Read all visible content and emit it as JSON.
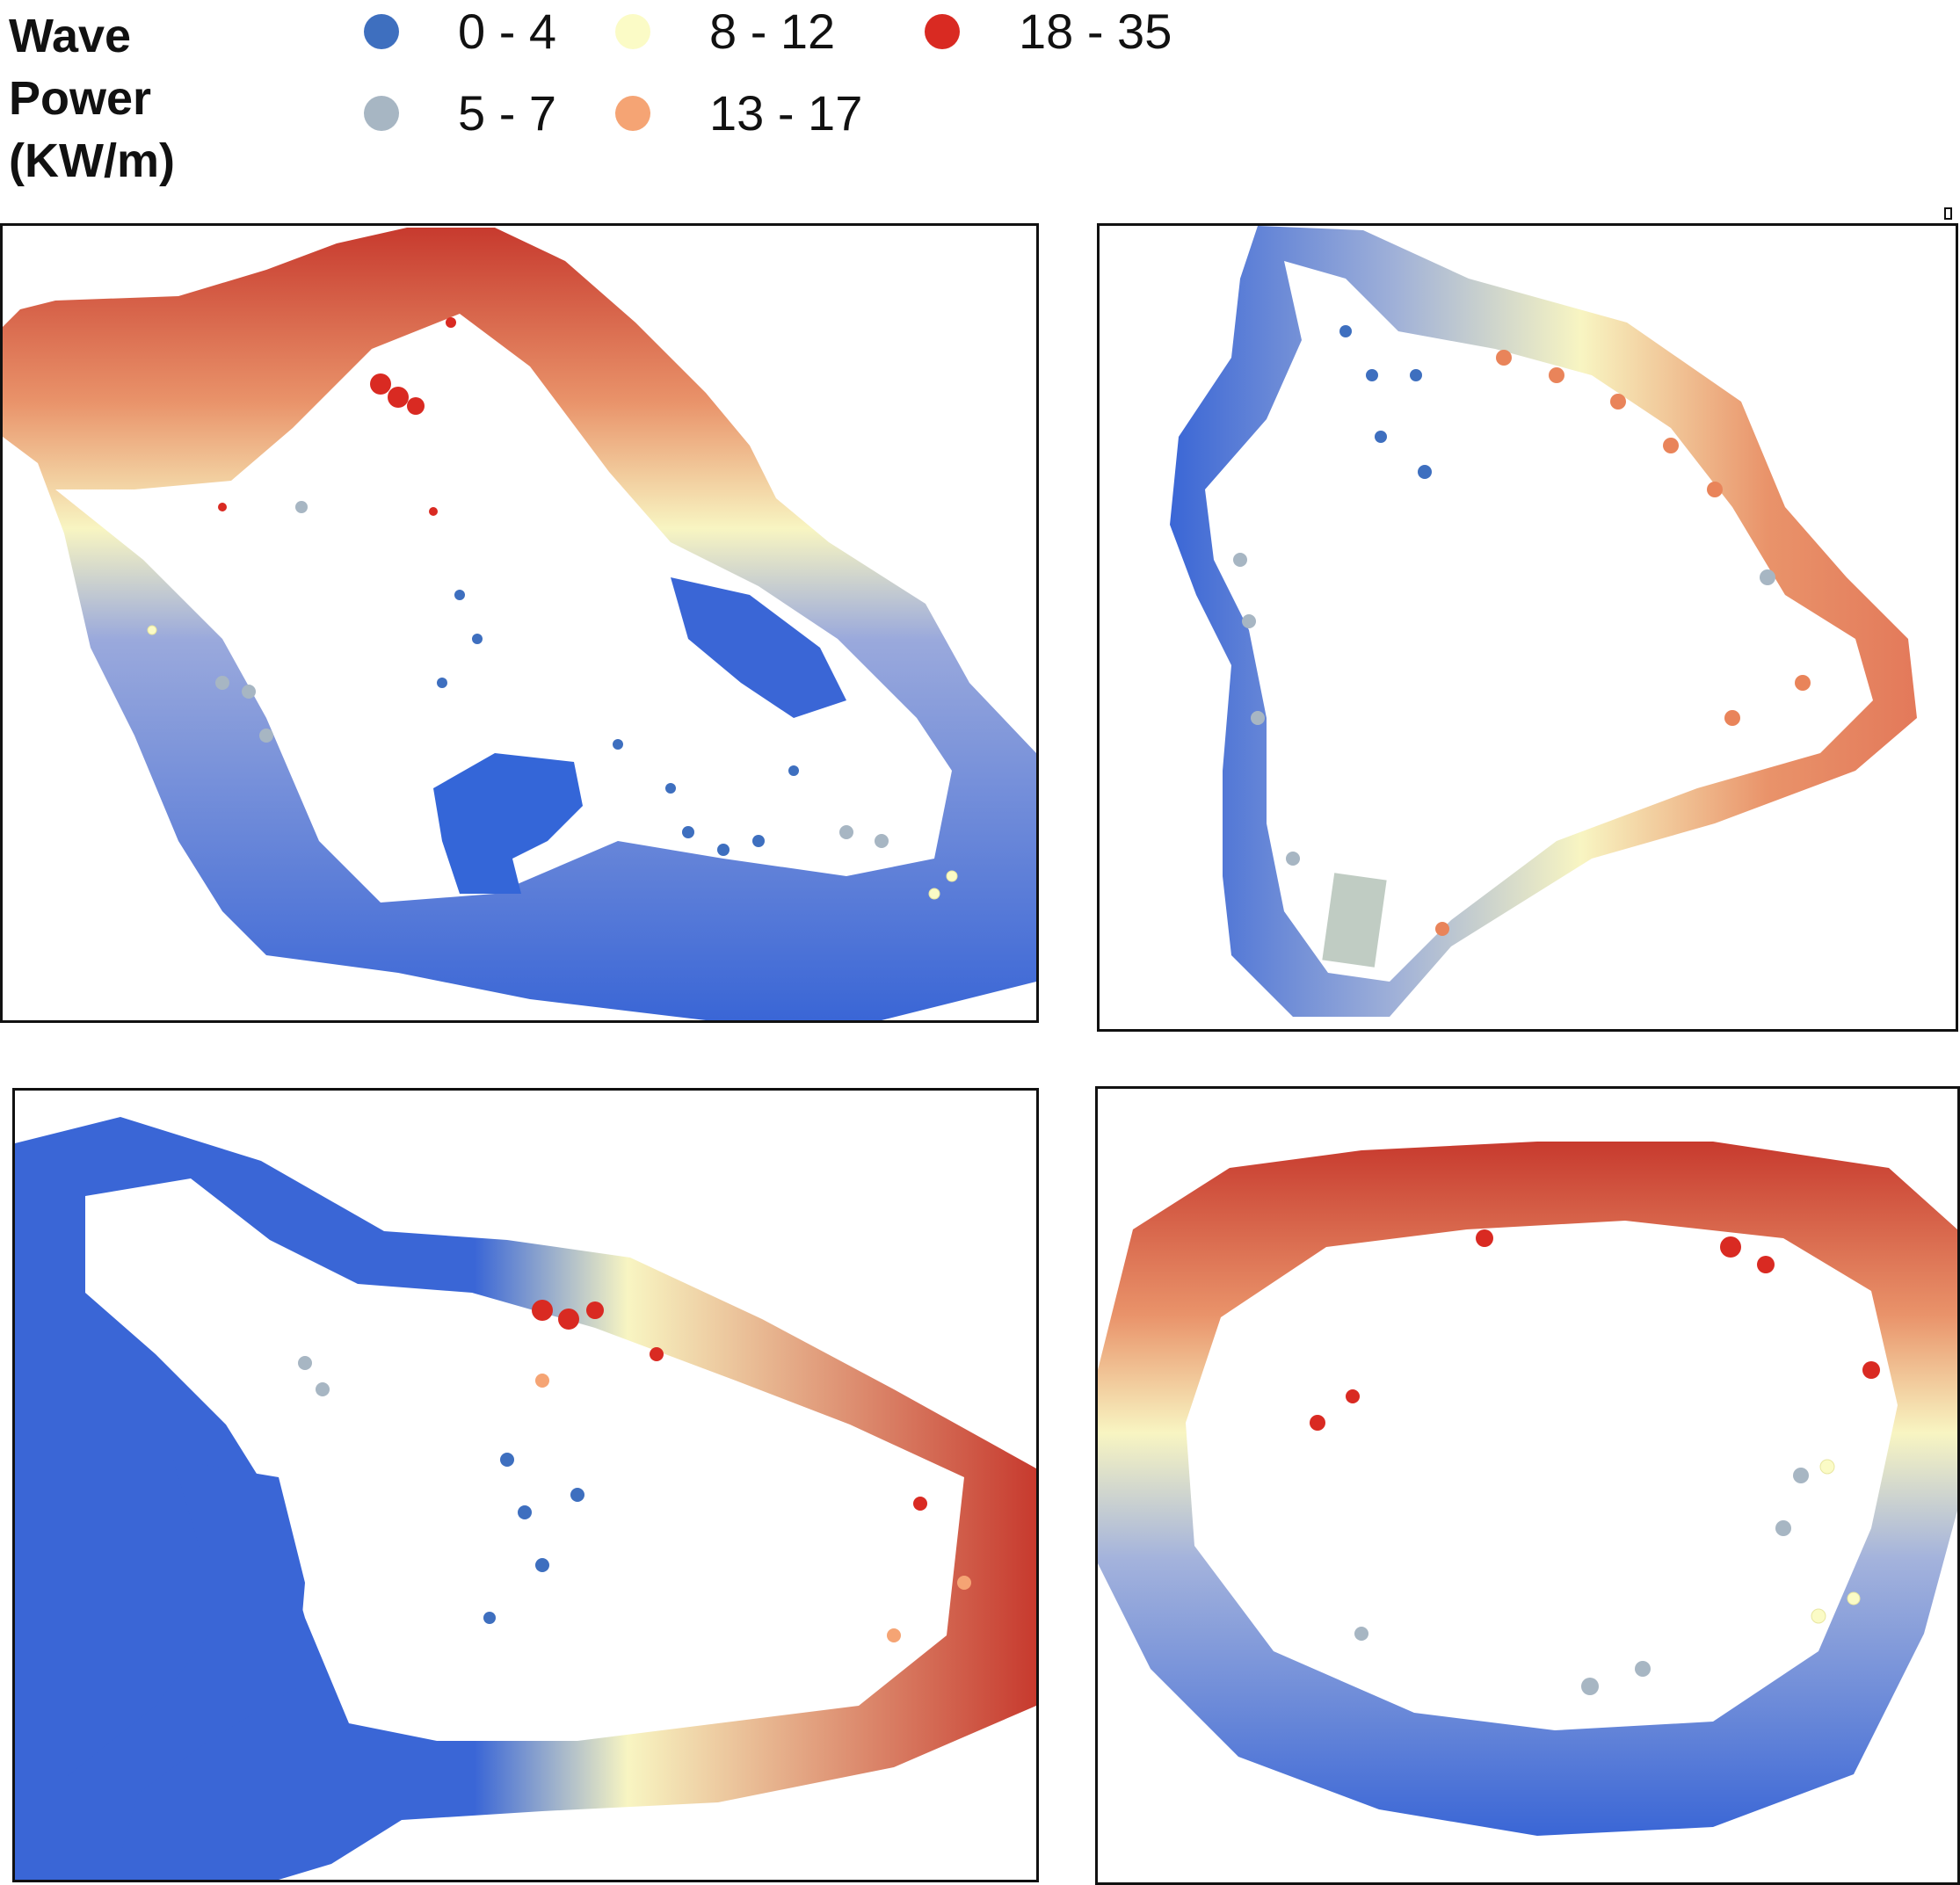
{
  "legend": {
    "title_lines": [
      "Wave",
      "Power",
      "(KW/m)"
    ],
    "classes": [
      {
        "label": "0 - 4",
        "color": "#3e6fbf"
      },
      {
        "label": "5 - 7",
        "color": "#a7b6c3"
      },
      {
        "label": "8 - 12",
        "color": "#fbfbc6"
      },
      {
        "label": "13 - 17",
        "color": "#f5a474"
      },
      {
        "label": "18 - 35",
        "color": "#d92a22"
      }
    ]
  },
  "colors": {
    "band_blue": "#3a66d6",
    "band_grey": "#c9d2cf",
    "band_yellow": "#f8f5c2",
    "band_orange": "#e9936a",
    "band_red": "#c73a2e"
  },
  "panels": [
    {
      "island": "panel-top-left"
    },
    {
      "island": "panel-top-right"
    },
    {
      "island": "panel-bottom-left"
    },
    {
      "island": "panel-bottom-right"
    }
  ]
}
